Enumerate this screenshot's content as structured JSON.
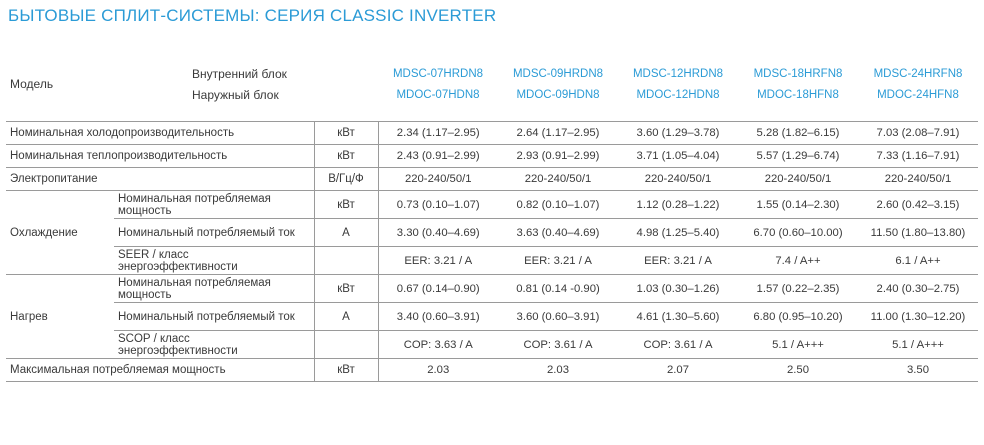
{
  "title": "БЫТОВЫЕ СПЛИТ-СИСТЕМЫ: СЕРИЯ CLASSIC INVERTER",
  "header": {
    "model_label": "Модель",
    "indoor_label": "Внутренний блок",
    "outdoor_label": "Наружный блок",
    "indoor_models": [
      "MDSC-07HRDN8",
      "MDSC-09HRDN8",
      "MDSC-12HRDN8",
      "MDSC-18HRFN8",
      "MDSC-24HRFN8"
    ],
    "outdoor_models": [
      "MDOC-07HDN8",
      "MDOC-09HDN8",
      "MDOC-12HDN8",
      "MDOC-18HFN8",
      "MDOC-24HFN8"
    ]
  },
  "rows": {
    "cool_capacity": {
      "label": "Номинальная холодопроизводительность",
      "unit": "кВт",
      "values": [
        "2.34 (1.17–2.95)",
        "2.64 (1.17–2.95)",
        "3.60 (1.29–3.78)",
        "5.28 (1.82–6.15)",
        "7.03 (2.08–7.91)"
      ]
    },
    "heat_capacity": {
      "label": "Номинальная теплопроизводительность",
      "unit": "кВт",
      "values": [
        "2.43  (0.91–2.99)",
        "2.93 (0.91–2.99)",
        "3.71 (1.05–4.04)",
        "5.57 (1.29–6.74)",
        "7.33 (1.16–7.91)"
      ]
    },
    "power_supply": {
      "label": "Электропитание",
      "unit": "В/Гц/Ф",
      "values": [
        "220-240/50/1",
        "220-240/50/1",
        "220-240/50/1",
        "220-240/50/1",
        "220-240/50/1"
      ]
    },
    "cooling": {
      "section": "Охлаждение",
      "power": {
        "label": "Номинальная потребляемая мощность",
        "unit": "кВт",
        "values": [
          "0.73 (0.10–1.07)",
          "0.82 (0.10–1.07)",
          "1.12 (0.28–1.22)",
          "1.55 (0.14–2.30)",
          "2.60 (0.42–3.15)"
        ]
      },
      "current": {
        "label": "Номинальный потребляемый ток",
        "unit": "А",
        "values": [
          "3.30 (0.40–4.69)",
          "3.63 (0.40–4.69)",
          "4.98 (1.25–5.40)",
          "6.70 (0.60–10.00)",
          "11.50 (1.80–13.80)"
        ]
      },
      "efficiency": {
        "label": "SEER / класс энергоэффективности",
        "unit": "",
        "values": [
          "EER: 3.21 / A",
          "EER: 3.21 / A",
          "EER: 3.21 / A",
          "7.4 / A++",
          "6.1 / A++"
        ]
      }
    },
    "heating": {
      "section": "Нагрев",
      "power": {
        "label": "Номинальная потребляемая мощность",
        "unit": "кВт",
        "values": [
          "0.67 (0.14–0.90)",
          "0.81 (0.14 -0.90)",
          "1.03 (0.30–1.26)",
          "1.57 (0.22–2.35)",
          "2.40 (0.30–2.75)"
        ]
      },
      "current": {
        "label": "Номинальный потребляемый ток",
        "unit": "А",
        "values": [
          "3.40 (0.60–3.91)",
          "3.60 (0.60–3.91)",
          "4.61 (1.30–5.60)",
          "6.80 (0.95–10.20)",
          "11.00 (1.30–12.20)"
        ]
      },
      "efficiency": {
        "label": "SCOP / класс энергоэффективности",
        "unit": "",
        "values": [
          "COP: 3.63 / A",
          "COP: 3.61 / A",
          "COP: 3.61 / A",
          "5.1 / A+++",
          "5.1 / A+++"
        ]
      }
    },
    "max_power": {
      "label": "Максимальная потребляемая мощность",
      "unit": "кВт",
      "values": [
        "2.03",
        "2.03",
        "2.07",
        "2.50",
        "3.50"
      ]
    }
  }
}
